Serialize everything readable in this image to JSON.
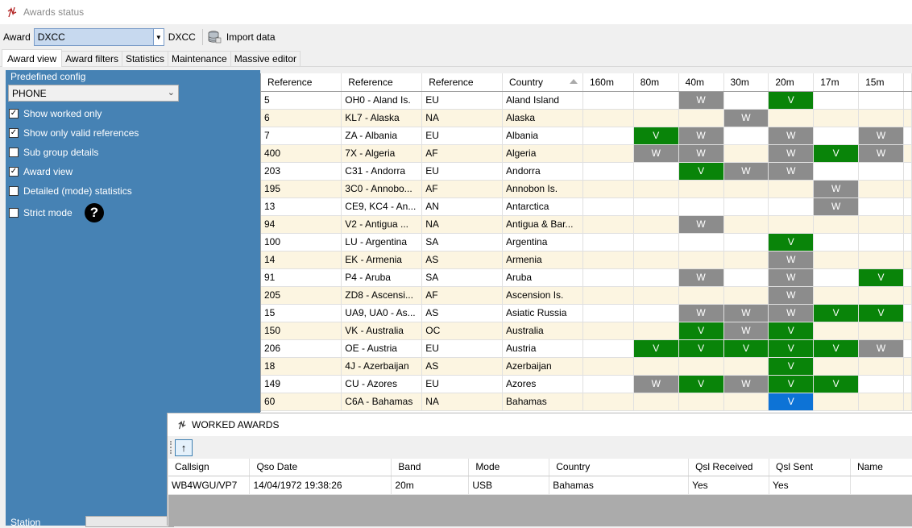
{
  "window": {
    "title": "Awards status"
  },
  "toolbar": {
    "award_label": "Award",
    "award_value": "DXCC",
    "award_name": "DXCC",
    "import_label": "Import data"
  },
  "tabs": [
    "Award view",
    "Award filters",
    "Statistics",
    "Maintenance",
    "Massive editor"
  ],
  "left": {
    "predefined_caption": "Predefined config",
    "predefined_value": "PHONE",
    "options": [
      {
        "label": "Show worked only",
        "checked": true
      },
      {
        "label": "Show only valid references",
        "checked": true
      },
      {
        "label": "Sub group details",
        "checked": false
      },
      {
        "label": "Award view",
        "checked": true
      },
      {
        "label": "Detailed (mode) statistics",
        "checked": false
      },
      {
        "label": "Strict mode",
        "checked": false
      }
    ],
    "station_label": "Station"
  },
  "grid": {
    "headers": [
      "Reference",
      "Reference",
      "Reference",
      "Country",
      "160m",
      "80m",
      "40m",
      "30m",
      "20m",
      "17m",
      "15m"
    ],
    "rows": [
      [
        "5",
        "OH0 - Aland Is.",
        "EU",
        "Aland Island",
        "",
        "",
        "W",
        "",
        "V",
        "",
        ""
      ],
      [
        "6",
        "KL7 - Alaska",
        "NA",
        "Alaska",
        "",
        "",
        "",
        "W",
        "",
        "",
        ""
      ],
      [
        "7",
        "ZA - Albania",
        "EU",
        "Albania",
        "",
        "V",
        "W",
        "",
        "W",
        "",
        "W"
      ],
      [
        "400",
        "7X - Algeria",
        "AF",
        "Algeria",
        "",
        "W",
        "W",
        "",
        "W",
        "V",
        "W"
      ],
      [
        "203",
        "C31 - Andorra",
        "EU",
        "Andorra",
        "",
        "",
        "V",
        "W",
        "W",
        "",
        ""
      ],
      [
        "195",
        "3C0 - Annobo...",
        "AF",
        "Annobon Is.",
        "",
        "",
        "",
        "",
        "",
        "W",
        ""
      ],
      [
        "13",
        "CE9, KC4 - An...",
        "AN",
        "Antarctica",
        "",
        "",
        "",
        "",
        "",
        "W",
        ""
      ],
      [
        "94",
        "V2 - Antigua ...",
        "NA",
        "Antigua & Bar...",
        "",
        "",
        "W",
        "",
        "",
        "",
        ""
      ],
      [
        "100",
        "LU - Argentina",
        "SA",
        "Argentina",
        "",
        "",
        "",
        "",
        "V",
        "",
        ""
      ],
      [
        "14",
        "EK - Armenia",
        "AS",
        "Armenia",
        "",
        "",
        "",
        "",
        "W",
        "",
        ""
      ],
      [
        "91",
        "P4 - Aruba",
        "SA",
        "Aruba",
        "",
        "",
        "W",
        "",
        "W",
        "",
        "V"
      ],
      [
        "205",
        "ZD8 - Ascensi...",
        "AF",
        "Ascension Is.",
        "",
        "",
        "",
        "",
        "W",
        "",
        ""
      ],
      [
        "15",
        "UA9, UA0 - As...",
        "AS",
        "Asiatic Russia",
        "",
        "",
        "W",
        "W",
        "W",
        "V",
        "V"
      ],
      [
        "150",
        "VK - Australia",
        "OC",
        "Australia",
        "",
        "",
        "V",
        "W",
        "V",
        "",
        ""
      ],
      [
        "206",
        "OE - Austria",
        "EU",
        "Austria",
        "",
        "V",
        "V",
        "V",
        "V",
        "V",
        "W"
      ],
      [
        "18",
        "4J - Azerbaijan",
        "AS",
        "Azerbaijan",
        "",
        "",
        "",
        "",
        "V",
        "",
        ""
      ],
      [
        "149",
        "CU - Azores",
        "EU",
        "Azores",
        "",
        "W",
        "V",
        "W",
        "V",
        "V",
        ""
      ],
      [
        "60",
        "C6A - Bahamas",
        "NA",
        "Bahamas",
        "",
        "",
        "",
        "",
        "V",
        "",
        ""
      ]
    ]
  },
  "worked": {
    "title": "WORKED AWARDS",
    "up_label": "↑",
    "headers": [
      "Callsign",
      "Qso Date",
      "Band",
      "Mode",
      "Country",
      "Qsl Received",
      "Qsl Sent",
      "Name"
    ],
    "rows": [
      [
        "WB4WGU/VP7",
        "14/04/1972 19:38:26",
        "20m",
        "USB",
        "Bahamas",
        "Yes",
        "Yes",
        ""
      ]
    ]
  },
  "colors": {
    "panel": "#4682b4",
    "worked_cell": "#8c8c8c",
    "valid_cell": "#098409",
    "selected_cell": "#0d73d6",
    "alt_row": "#fcf5e1"
  },
  "icons": [
    "app-icon",
    "import-data-icon",
    "help-icon",
    "sort-ascending-icon",
    "arrow-up-icon"
  ]
}
